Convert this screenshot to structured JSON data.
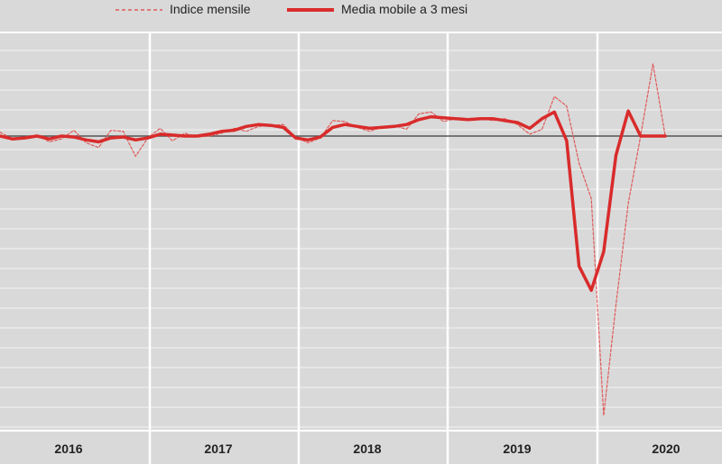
{
  "chart_data": {
    "type": "line",
    "title": "",
    "xlabel": "",
    "ylabel": "",
    "x_tick_labels": [
      "2016",
      "2017",
      "2018",
      "2019",
      "2020"
    ],
    "legend": {
      "placement": "top",
      "items": [
        {
          "name": "Indice mensile",
          "style": "dashed"
        },
        {
          "name": "Media mobile a 3 mesi",
          "style": "solid"
        }
      ]
    },
    "grid": true,
    "baseline": 0,
    "y_range": [
      -40,
      10
    ],
    "x": [
      "2016-01",
      "2016-02",
      "2016-03",
      "2016-04",
      "2016-05",
      "2016-06",
      "2016-07",
      "2016-08",
      "2016-09",
      "2016-10",
      "2016-11",
      "2016-12",
      "2017-01",
      "2017-02",
      "2017-03",
      "2017-04",
      "2017-05",
      "2017-06",
      "2017-07",
      "2017-08",
      "2017-09",
      "2017-10",
      "2017-11",
      "2017-12",
      "2018-01",
      "2018-02",
      "2018-03",
      "2018-04",
      "2018-05",
      "2018-06",
      "2018-07",
      "2018-08",
      "2018-09",
      "2018-10",
      "2018-11",
      "2018-12",
      "2019-01",
      "2019-02",
      "2019-03",
      "2019-04",
      "2019-05",
      "2019-06",
      "2019-07",
      "2019-08",
      "2019-09",
      "2019-10",
      "2019-11",
      "2019-12",
      "2020-01",
      "2020-02",
      "2020-03",
      "2020-04",
      "2020-05",
      "2020-06",
      "2020-07"
    ],
    "series": [
      {
        "name": "Indice mensile",
        "color": "#e05a5a",
        "style": "dashed",
        "values": [
          0.4,
          -0.3,
          -0.1,
          0.1,
          -0.6,
          -0.3,
          0.6,
          -0.7,
          -1.2,
          0.6,
          0.5,
          -2.1,
          -0.2,
          0.8,
          -0.5,
          0.3,
          -0.1,
          0.0,
          0.3,
          0.8,
          0.5,
          1.0,
          1.1,
          1.2,
          -0.1,
          -0.7,
          -0.2,
          1.6,
          1.5,
          0.9,
          0.5,
          0.9,
          1.1,
          0.7,
          2.3,
          2.5,
          1.5,
          1.8,
          1.7,
          1.9,
          1.6,
          1.8,
          1.2,
          0.2,
          0.7,
          4.1,
          3.1,
          -2.8,
          -6.5,
          -29.0,
          -17.5,
          -7.0,
          0.0,
          7.5,
          0.0
        ]
      },
      {
        "name": "Media mobile a 3 mesi",
        "color": "#d92b2b",
        "style": "solid",
        "values": [
          0.0,
          -0.3,
          -0.2,
          0.0,
          -0.3,
          0.0,
          -0.1,
          -0.4,
          -0.6,
          -0.2,
          -0.1,
          -0.4,
          -0.2,
          0.2,
          0.1,
          0.0,
          0.0,
          0.2,
          0.5,
          0.6,
          1.0,
          1.2,
          1.1,
          0.9,
          -0.2,
          -0.4,
          -0.1,
          0.9,
          1.2,
          1.0,
          0.8,
          0.9,
          1.0,
          1.2,
          1.7,
          2.0,
          1.9,
          1.8,
          1.7,
          1.8,
          1.8,
          1.6,
          1.4,
          0.8,
          1.8,
          2.5,
          -0.5,
          -13.5,
          -16.0,
          -12.0,
          -2.0,
          2.6,
          0.0,
          0.0,
          0.0
        ]
      }
    ]
  }
}
